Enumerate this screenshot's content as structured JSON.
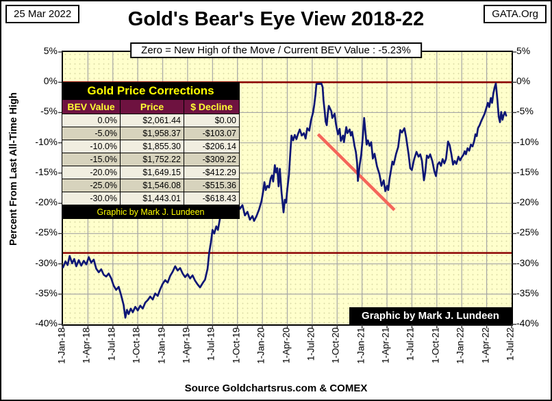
{
  "header": {
    "date_box": "25 Mar 2022",
    "org_box": "GATA.Org",
    "title": "Gold's Bear's Eye View 2018-22",
    "subtitle": "Zero = New High of the Move / Current  BEV Value : -5.23%"
  },
  "footer": {
    "source": "Source Goldchartsrus.com & COMEX"
  },
  "plot_annotation": "Graphic by Mark J. Lundeen",
  "corrections_table": {
    "title": "Gold Price Corrections",
    "columns": [
      "BEV Value",
      "Price",
      "$ Decline"
    ],
    "rows": [
      [
        "0.0%",
        "$2,061.44",
        "$0.00"
      ],
      [
        "-5.0%",
        "$1,958.37",
        "-$103.07"
      ],
      [
        "-10.0%",
        "$1,855.30",
        "-$206.14"
      ],
      [
        "-15.0%",
        "$1,752.22",
        "-$309.22"
      ],
      [
        "-20.0%",
        "$1,649.15",
        "-$412.29"
      ],
      [
        "-25.0%",
        "$1,546.08",
        "-$515.36"
      ],
      [
        "-30.0%",
        "$1,443.01",
        "-$618.43"
      ]
    ],
    "footer": "Graphic by Mark J. Lundeen"
  },
  "chart_data": {
    "type": "line",
    "title": "Gold's Bear's Eye View 2018-22",
    "ylabel": "Percent  From  Last  All-Time  High",
    "ylim": [
      5,
      -40
    ],
    "grid": true,
    "y_tick_labels": [
      "5%",
      "0%",
      "-5%",
      "-10%",
      "-15%",
      "-20%",
      "-25%",
      "-30%",
      "-35%",
      "-40%"
    ],
    "x_tick_labels": [
      "1-Jan-18",
      "1-Apr-18",
      "1-Jul-18",
      "1-Oct-18",
      "1-Jan-19",
      "1-Apr-19",
      "1-Jul-19",
      "1-Oct-19",
      "1-Jan-20",
      "1-Apr-20",
      "1-Jul-20",
      "1-Oct-20",
      "1-Jan-21",
      "1-Apr-21",
      "1-Jul-21",
      "1-Oct-21",
      "1-Jan-22",
      "1-Apr-22",
      "1-Jul-22"
    ],
    "x_unit": "months since 1-Jan-2018 (position on axis)",
    "x_months_per_tick": 3,
    "x_total_months": 54,
    "ref_lines": [
      {
        "name": "zero-new-high-line",
        "value": 0
      },
      {
        "name": "pre-breakout-resistance-line",
        "value": -28.2
      }
    ],
    "trend_line": {
      "from": [
        30.7,
        -8.6
      ],
      "to": [
        39.9,
        -21.1
      ]
    },
    "series": [
      {
        "name": "Gold BEV (% from last all-time high)",
        "points": [
          [
            0.0,
            -30.6
          ],
          [
            0.3,
            -29.6
          ],
          [
            0.55,
            -30.2
          ],
          [
            0.8,
            -28.7
          ],
          [
            1.1,
            -29.9
          ],
          [
            1.35,
            -29.2
          ],
          [
            1.6,
            -30.4
          ],
          [
            1.9,
            -29.4
          ],
          [
            2.2,
            -30.3
          ],
          [
            2.5,
            -29.5
          ],
          [
            2.8,
            -30.1
          ],
          [
            3.1,
            -28.9
          ],
          [
            3.4,
            -29.8
          ],
          [
            3.7,
            -29.3
          ],
          [
            4.0,
            -30.8
          ],
          [
            4.3,
            -31.4
          ],
          [
            4.6,
            -30.9
          ],
          [
            4.9,
            -31.8
          ],
          [
            5.2,
            -32.1
          ],
          [
            5.5,
            -31.6
          ],
          [
            5.8,
            -32.4
          ],
          [
            6.1,
            -33.6
          ],
          [
            6.4,
            -34.3
          ],
          [
            6.7,
            -33.8
          ],
          [
            7.0,
            -35.2
          ],
          [
            7.3,
            -36.8
          ],
          [
            7.5,
            -38.9
          ],
          [
            7.7,
            -37.6
          ],
          [
            7.9,
            -38.3
          ],
          [
            8.15,
            -37.4
          ],
          [
            8.4,
            -38.0
          ],
          [
            8.7,
            -37.1
          ],
          [
            9.0,
            -37.7
          ],
          [
            9.3,
            -36.9
          ],
          [
            9.6,
            -37.4
          ],
          [
            9.9,
            -36.4
          ],
          [
            10.2,
            -36.0
          ],
          [
            10.5,
            -35.4
          ],
          [
            10.8,
            -35.9
          ],
          [
            11.1,
            -34.9
          ],
          [
            11.4,
            -35.3
          ],
          [
            11.7,
            -34.2
          ],
          [
            12.0,
            -33.3
          ],
          [
            12.3,
            -32.7
          ],
          [
            12.6,
            -33.1
          ],
          [
            12.9,
            -32.0
          ],
          [
            13.2,
            -31.3
          ],
          [
            13.5,
            -30.4
          ],
          [
            13.8,
            -31.1
          ],
          [
            14.1,
            -30.7
          ],
          [
            14.4,
            -31.6
          ],
          [
            14.7,
            -32.2
          ],
          [
            15.0,
            -31.7
          ],
          [
            15.3,
            -32.4
          ],
          [
            15.6,
            -31.9
          ],
          [
            15.9,
            -32.8
          ],
          [
            16.2,
            -33.4
          ],
          [
            16.5,
            -33.9
          ],
          [
            16.8,
            -33.2
          ],
          [
            17.1,
            -32.6
          ],
          [
            17.4,
            -30.8
          ],
          [
            17.6,
            -28.1
          ],
          [
            17.8,
            -26.5
          ],
          [
            18.0,
            -24.4
          ],
          [
            18.2,
            -25.0
          ],
          [
            18.45,
            -23.8
          ],
          [
            18.65,
            -24.4
          ],
          [
            18.9,
            -22.5
          ],
          [
            19.1,
            -19.8
          ],
          [
            19.3,
            -21.0
          ],
          [
            19.5,
            -19.9
          ],
          [
            19.75,
            -18.8
          ],
          [
            20.0,
            -19.4
          ],
          [
            20.2,
            -17.6
          ],
          [
            20.5,
            -19.1
          ],
          [
            20.75,
            -18.4
          ],
          [
            21.0,
            -19.8
          ],
          [
            21.3,
            -20.9
          ],
          [
            21.6,
            -20.3
          ],
          [
            21.9,
            -22.0
          ],
          [
            22.2,
            -21.4
          ],
          [
            22.5,
            -22.7
          ],
          [
            22.8,
            -22.1
          ],
          [
            23.0,
            -22.9
          ],
          [
            23.3,
            -22.1
          ],
          [
            23.6,
            -21.0
          ],
          [
            23.9,
            -19.6
          ],
          [
            24.1,
            -18.0
          ],
          [
            24.25,
            -16.5
          ],
          [
            24.4,
            -17.8
          ],
          [
            24.6,
            -17.1
          ],
          [
            24.8,
            -17.4
          ],
          [
            25.0,
            -15.9
          ],
          [
            25.15,
            -15.4
          ],
          [
            25.3,
            -16.4
          ],
          [
            25.5,
            -13.7
          ],
          [
            25.65,
            -14.9
          ],
          [
            25.8,
            -14.2
          ],
          [
            25.95,
            -17.2
          ],
          [
            26.1,
            -14.3
          ],
          [
            26.3,
            -18.1
          ],
          [
            26.55,
            -21.5
          ],
          [
            26.7,
            -19.4
          ],
          [
            26.85,
            -19.9
          ],
          [
            27.0,
            -17.7
          ],
          [
            27.2,
            -15.3
          ],
          [
            27.35,
            -12.0
          ],
          [
            27.5,
            -8.8
          ],
          [
            27.7,
            -9.6
          ],
          [
            27.9,
            -8.7
          ],
          [
            28.1,
            -9.4
          ],
          [
            28.3,
            -8.5
          ],
          [
            28.5,
            -7.8
          ],
          [
            28.75,
            -8.8
          ],
          [
            29.0,
            -8.4
          ],
          [
            29.2,
            -9.3
          ],
          [
            29.4,
            -7.6
          ],
          [
            29.65,
            -8.0
          ],
          [
            29.85,
            -6.3
          ],
          [
            30.1,
            -5.0
          ],
          [
            30.25,
            -3.7
          ],
          [
            30.4,
            -2.0
          ],
          [
            30.5,
            -0.3
          ],
          [
            31.1,
            -0.2
          ],
          [
            31.25,
            -0.8
          ],
          [
            31.35,
            -2.9
          ],
          [
            31.5,
            -4.8
          ],
          [
            31.62,
            -6.5
          ],
          [
            31.75,
            -7.1
          ],
          [
            31.87,
            -5.2
          ],
          [
            32.0,
            -3.9
          ],
          [
            32.3,
            -4.8
          ],
          [
            32.42,
            -5.9
          ],
          [
            32.7,
            -5.2
          ],
          [
            32.85,
            -6.9
          ],
          [
            33.1,
            -8.6
          ],
          [
            33.3,
            -7.7
          ],
          [
            33.45,
            -9.7
          ],
          [
            33.7,
            -8.8
          ],
          [
            33.82,
            -9.9
          ],
          [
            34.1,
            -7.4
          ],
          [
            34.25,
            -8.4
          ],
          [
            34.5,
            -7.8
          ],
          [
            34.65,
            -8.8
          ],
          [
            34.8,
            -8.2
          ],
          [
            34.95,
            -9.3
          ],
          [
            35.1,
            -10.6
          ],
          [
            35.25,
            -11.5
          ],
          [
            35.4,
            -13.3
          ],
          [
            35.5,
            -16.3
          ],
          [
            35.7,
            -13.8
          ],
          [
            35.9,
            -11.9
          ],
          [
            36.1,
            -8.8
          ],
          [
            36.25,
            -5.9
          ],
          [
            36.4,
            -8.1
          ],
          [
            36.55,
            -10.3
          ],
          [
            36.7,
            -9.6
          ],
          [
            36.9,
            -10.5
          ],
          [
            37.1,
            -9.9
          ],
          [
            37.3,
            -12.6
          ],
          [
            37.5,
            -11.8
          ],
          [
            37.8,
            -13.9
          ],
          [
            38.1,
            -15.2
          ],
          [
            38.35,
            -17.1
          ],
          [
            38.6,
            -16.2
          ],
          [
            38.8,
            -18.0
          ],
          [
            39.0,
            -17.1
          ],
          [
            39.15,
            -17.8
          ],
          [
            39.3,
            -16.0
          ],
          [
            39.5,
            -14.4
          ],
          [
            39.65,
            -13.1
          ],
          [
            39.8,
            -13.6
          ],
          [
            40.1,
            -11.8
          ],
          [
            40.35,
            -10.7
          ],
          [
            40.6,
            -7.9
          ],
          [
            40.8,
            -8.3
          ],
          [
            41.1,
            -7.6
          ],
          [
            41.3,
            -9.1
          ],
          [
            41.6,
            -11.9
          ],
          [
            41.8,
            -14.2
          ],
          [
            42.0,
            -14.5
          ],
          [
            42.25,
            -12.8
          ],
          [
            42.55,
            -11.5
          ],
          [
            42.8,
            -12.3
          ],
          [
            43.0,
            -11.9
          ],
          [
            43.2,
            -12.9
          ],
          [
            43.45,
            -16.2
          ],
          [
            43.6,
            -14.9
          ],
          [
            43.8,
            -12.1
          ],
          [
            44.0,
            -12.5
          ],
          [
            44.2,
            -11.9
          ],
          [
            44.45,
            -13.0
          ],
          [
            44.7,
            -14.7
          ],
          [
            44.9,
            -15.5
          ],
          [
            45.1,
            -13.6
          ],
          [
            45.3,
            -13.2
          ],
          [
            45.5,
            -13.8
          ],
          [
            45.7,
            -12.7
          ],
          [
            45.9,
            -13.4
          ],
          [
            46.1,
            -12.7
          ],
          [
            46.35,
            -9.8
          ],
          [
            46.55,
            -10.4
          ],
          [
            46.75,
            -11.9
          ],
          [
            46.95,
            -13.6
          ],
          [
            47.15,
            -13.0
          ],
          [
            47.35,
            -13.5
          ],
          [
            47.6,
            -12.3
          ],
          [
            47.8,
            -12.9
          ],
          [
            48.0,
            -12.4
          ],
          [
            48.2,
            -12.0
          ],
          [
            48.35,
            -11.4
          ],
          [
            48.5,
            -11.9
          ],
          [
            48.7,
            -10.9
          ],
          [
            48.9,
            -11.3
          ],
          [
            49.1,
            -10.3
          ],
          [
            49.3,
            -10.6
          ],
          [
            49.5,
            -9.7
          ],
          [
            49.65,
            -8.6
          ],
          [
            49.8,
            -8.9
          ],
          [
            49.95,
            -7.6
          ],
          [
            50.15,
            -7.1
          ],
          [
            50.35,
            -6.4
          ],
          [
            50.55,
            -5.8
          ],
          [
            50.75,
            -5.2
          ],
          [
            50.95,
            -4.3
          ],
          [
            51.15,
            -3.4
          ],
          [
            51.3,
            -4.1
          ],
          [
            51.5,
            -2.6
          ],
          [
            51.65,
            -3.4
          ],
          [
            51.8,
            -1.9
          ],
          [
            51.95,
            -0.9
          ],
          [
            52.1,
            -0.2
          ],
          [
            52.3,
            -3.1
          ],
          [
            52.45,
            -5.7
          ],
          [
            52.6,
            -6.6
          ],
          [
            52.75,
            -4.9
          ],
          [
            52.9,
            -6.2
          ],
          [
            53.05,
            -5.4
          ],
          [
            53.2,
            -4.9
          ],
          [
            53.35,
            -5.5
          ]
        ]
      }
    ],
    "colors": {
      "series": "#0d1675",
      "ref_line": "#8b0000",
      "trend_line": "#f4655a",
      "grid": "#a6a6a6",
      "tick": "#333333",
      "plot_bg": "#ffffcc",
      "plot_dot": "#dbdba6",
      "table_title_bg": "#000000",
      "table_title_fg": "#ffff00",
      "table_header_bg": "#6e1240",
      "table_header_fg": "#ffff33",
      "row_light": "#f1eee0",
      "row_dark": "#d7d3bd"
    }
  }
}
